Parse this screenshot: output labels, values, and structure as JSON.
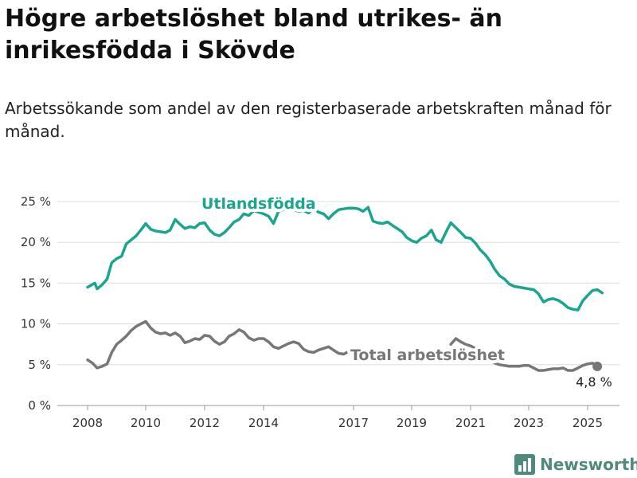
{
  "title": "Högre arbetslöshet bland utrikes- än inrikesfödda i Skövde",
  "subtitle": "Arbetssökande som andel av den registerbaserade arbetskraften månad för månad.",
  "brand": {
    "name": "Newsworthy",
    "icon": "bar-chart-logo-icon"
  },
  "chart_data": {
    "type": "line",
    "title": "Högre arbetslöshet bland utrikes- än inrikesfödda i Skövde",
    "subtitle": "Arbetssökande som andel av den registerbaserade arbetskraften månad för månad.",
    "xlabel": "",
    "ylabel": "",
    "ylim": [
      0,
      25
    ],
    "xlim": [
      2007.5,
      2026.2
    ],
    "y_ticks": [
      0,
      5,
      10,
      15,
      20,
      25
    ],
    "y_tick_labels": [
      "0 %",
      "5 %",
      "10 %",
      "15 %",
      "20 %",
      "25 %"
    ],
    "x_ticks": [
      2008,
      2010,
      2012,
      2014,
      2017,
      2019,
      2021,
      2023,
      2025
    ],
    "x_tick_labels": [
      "2008",
      "2010",
      "2012",
      "2014",
      "2017",
      "2019",
      "2021",
      "2023",
      "2025"
    ],
    "grid": "horizontal",
    "legend": "none (direct labels)",
    "end_label": "4,8 %",
    "colors": {
      "utlandsfodda": "#1aa58f",
      "total": "#777777"
    },
    "series": [
      {
        "name": "Utlandsfödda",
        "points": [
          [
            2008.0,
            14.5
          ],
          [
            2008.25,
            15.0
          ],
          [
            2008.33,
            14.3
          ],
          [
            2008.5,
            14.8
          ],
          [
            2008.67,
            15.5
          ],
          [
            2008.83,
            17.5
          ],
          [
            2009.0,
            18.0
          ],
          [
            2009.17,
            18.3
          ],
          [
            2009.33,
            19.8
          ],
          [
            2009.5,
            20.3
          ],
          [
            2009.67,
            20.8
          ],
          [
            2009.83,
            21.5
          ],
          [
            2010.0,
            22.3
          ],
          [
            2010.17,
            21.6
          ],
          [
            2010.33,
            21.4
          ],
          [
            2010.5,
            21.3
          ],
          [
            2010.67,
            21.2
          ],
          [
            2010.83,
            21.5
          ],
          [
            2011.0,
            22.8
          ],
          [
            2011.17,
            22.2
          ],
          [
            2011.33,
            21.7
          ],
          [
            2011.5,
            21.9
          ],
          [
            2011.67,
            21.8
          ],
          [
            2011.83,
            22.3
          ],
          [
            2012.0,
            22.4
          ],
          [
            2012.17,
            21.5
          ],
          [
            2012.33,
            21.0
          ],
          [
            2012.5,
            20.8
          ],
          [
            2012.67,
            21.2
          ],
          [
            2012.83,
            21.8
          ],
          [
            2013.0,
            22.5
          ],
          [
            2013.17,
            22.8
          ],
          [
            2013.33,
            23.5
          ],
          [
            2013.5,
            23.3
          ],
          [
            2013.67,
            23.9
          ],
          [
            2014.0,
            23.5
          ],
          [
            2014.17,
            23.2
          ],
          [
            2014.33,
            22.3
          ],
          [
            2014.5,
            23.8
          ],
          [
            2014.67,
            24.0
          ],
          [
            2014.83,
            24.1
          ],
          [
            2015.0,
            24.0
          ],
          [
            2015.17,
            23.8
          ],
          [
            2015.33,
            23.9
          ],
          [
            2015.5,
            23.6
          ],
          [
            2015.67,
            24.2
          ],
          [
            2015.83,
            23.7
          ],
          [
            2016.0,
            23.5
          ],
          [
            2016.17,
            22.9
          ],
          [
            2016.33,
            23.5
          ],
          [
            2016.5,
            24.0
          ],
          [
            2016.67,
            24.1
          ],
          [
            2016.83,
            24.2
          ],
          [
            2017.0,
            24.2
          ],
          [
            2017.17,
            24.1
          ],
          [
            2017.33,
            23.8
          ],
          [
            2017.5,
            24.3
          ],
          [
            2017.67,
            22.6
          ],
          [
            2017.83,
            22.4
          ],
          [
            2018.0,
            22.3
          ],
          [
            2018.17,
            22.5
          ],
          [
            2018.33,
            22.1
          ],
          [
            2018.5,
            21.7
          ],
          [
            2018.67,
            21.3
          ],
          [
            2018.83,
            20.6
          ],
          [
            2019.0,
            20.2
          ],
          [
            2019.17,
            20.0
          ],
          [
            2019.33,
            20.5
          ],
          [
            2019.5,
            20.8
          ],
          [
            2019.67,
            21.5
          ],
          [
            2019.83,
            20.3
          ],
          [
            2020.0,
            20.0
          ],
          [
            2020.17,
            21.3
          ],
          [
            2020.33,
            22.4
          ],
          [
            2020.5,
            21.8
          ],
          [
            2020.67,
            21.2
          ],
          [
            2020.83,
            20.6
          ],
          [
            2021.0,
            20.5
          ],
          [
            2021.17,
            19.9
          ],
          [
            2021.33,
            19.1
          ],
          [
            2021.5,
            18.5
          ],
          [
            2021.67,
            17.7
          ],
          [
            2021.83,
            16.7
          ],
          [
            2022.0,
            15.9
          ],
          [
            2022.17,
            15.5
          ],
          [
            2022.33,
            14.9
          ],
          [
            2022.5,
            14.6
          ],
          [
            2022.67,
            14.5
          ],
          [
            2022.83,
            14.4
          ],
          [
            2023.0,
            14.3
          ],
          [
            2023.17,
            14.2
          ],
          [
            2023.33,
            13.7
          ],
          [
            2023.5,
            12.7
          ],
          [
            2023.67,
            13.0
          ],
          [
            2023.83,
            13.1
          ],
          [
            2024.0,
            12.9
          ],
          [
            2024.17,
            12.5
          ],
          [
            2024.33,
            12.0
          ],
          [
            2024.5,
            11.8
          ],
          [
            2024.67,
            11.7
          ],
          [
            2024.83,
            12.8
          ],
          [
            2025.0,
            13.5
          ],
          [
            2025.17,
            14.1
          ],
          [
            2025.33,
            14.2
          ],
          [
            2025.5,
            13.8
          ]
        ]
      },
      {
        "name": "Total arbetslöshet",
        "points": [
          [
            2008.0,
            5.6
          ],
          [
            2008.17,
            5.2
          ],
          [
            2008.33,
            4.6
          ],
          [
            2008.5,
            4.8
          ],
          [
            2008.67,
            5.1
          ],
          [
            2008.83,
            6.5
          ],
          [
            2009.0,
            7.5
          ],
          [
            2009.17,
            8.0
          ],
          [
            2009.33,
            8.5
          ],
          [
            2009.5,
            9.2
          ],
          [
            2009.67,
            9.7
          ],
          [
            2009.83,
            10.0
          ],
          [
            2010.0,
            10.3
          ],
          [
            2010.17,
            9.5
          ],
          [
            2010.33,
            9.0
          ],
          [
            2010.5,
            8.8
          ],
          [
            2010.67,
            8.9
          ],
          [
            2010.83,
            8.6
          ],
          [
            2011.0,
            8.9
          ],
          [
            2011.17,
            8.5
          ],
          [
            2011.33,
            7.7
          ],
          [
            2011.5,
            7.9
          ],
          [
            2011.67,
            8.2
          ],
          [
            2011.83,
            8.1
          ],
          [
            2012.0,
            8.6
          ],
          [
            2012.17,
            8.5
          ],
          [
            2012.33,
            7.9
          ],
          [
            2012.5,
            7.5
          ],
          [
            2012.67,
            7.8
          ],
          [
            2012.83,
            8.5
          ],
          [
            2013.0,
            8.8
          ],
          [
            2013.17,
            9.3
          ],
          [
            2013.33,
            9.0
          ],
          [
            2013.5,
            8.3
          ],
          [
            2013.67,
            8.0
          ],
          [
            2013.83,
            8.2
          ],
          [
            2014.0,
            8.2
          ],
          [
            2014.17,
            7.8
          ],
          [
            2014.33,
            7.2
          ],
          [
            2014.5,
            7.0
          ],
          [
            2014.67,
            7.3
          ],
          [
            2014.83,
            7.6
          ],
          [
            2015.0,
            7.8
          ],
          [
            2015.17,
            7.6
          ],
          [
            2015.33,
            6.9
          ],
          [
            2015.5,
            6.6
          ],
          [
            2015.67,
            6.5
          ],
          [
            2015.83,
            6.8
          ],
          [
            2016.0,
            7.0
          ],
          [
            2016.17,
            7.2
          ],
          [
            2016.33,
            6.8
          ],
          [
            2016.5,
            6.4
          ],
          [
            2016.67,
            6.3
          ],
          [
            2016.83,
            6.6
          ],
          [
            2017.0,
            6.8
          ],
          [
            2020.33,
            7.5
          ],
          [
            2020.5,
            8.2
          ],
          [
            2020.67,
            7.8
          ],
          [
            2020.83,
            7.5
          ],
          [
            2021.0,
            7.3
          ],
          [
            2021.17,
            7.0
          ],
          [
            2021.33,
            6.5
          ],
          [
            2021.5,
            6.0
          ],
          [
            2021.67,
            5.5
          ],
          [
            2021.83,
            5.2
          ],
          [
            2022.0,
            5.0
          ],
          [
            2022.17,
            4.9
          ],
          [
            2022.33,
            4.8
          ],
          [
            2022.5,
            4.8
          ],
          [
            2022.67,
            4.8
          ],
          [
            2022.83,
            4.9
          ],
          [
            2023.0,
            4.9
          ],
          [
            2023.17,
            4.6
          ],
          [
            2023.33,
            4.3
          ],
          [
            2023.5,
            4.3
          ],
          [
            2023.67,
            4.4
          ],
          [
            2023.83,
            4.5
          ],
          [
            2024.0,
            4.5
          ],
          [
            2024.17,
            4.6
          ],
          [
            2024.33,
            4.3
          ],
          [
            2024.5,
            4.3
          ],
          [
            2024.67,
            4.6
          ],
          [
            2024.83,
            4.9
          ],
          [
            2025.0,
            5.1
          ],
          [
            2025.17,
            5.2
          ],
          [
            2025.33,
            4.8
          ]
        ]
      }
    ]
  }
}
